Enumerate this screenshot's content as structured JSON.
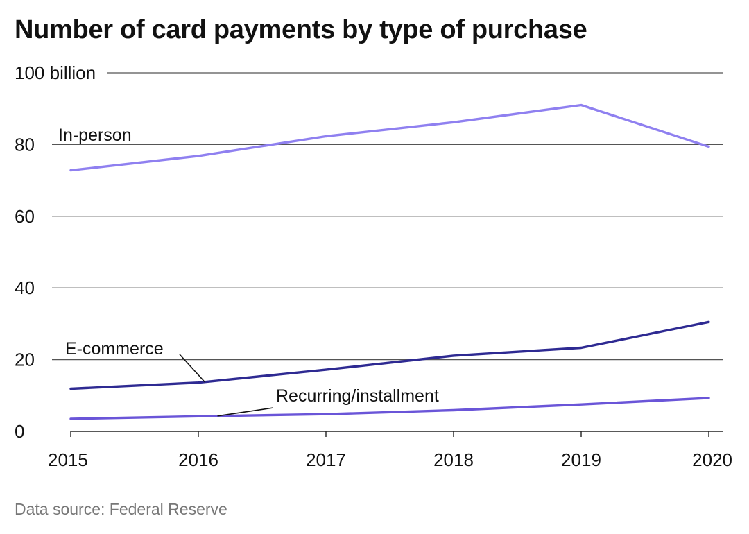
{
  "source_text": "Data source: Federal Reserve",
  "chart_data": {
    "type": "line",
    "title": "Number of card payments by type of purchase",
    "xlabel": "",
    "ylabel": "",
    "x": [
      "2015",
      "2016",
      "2017",
      "2018",
      "2019",
      "2020"
    ],
    "ylim": [
      0,
      100
    ],
    "yticks": [
      "0",
      "20",
      "40",
      "60",
      "80",
      "100 billion"
    ],
    "grid": true,
    "legend": "inline labels",
    "series": [
      {
        "name": "In-person",
        "color": "#8f80f0",
        "values": [
          72.8,
          76.8,
          82.3,
          86.2,
          91.0,
          79.4
        ]
      },
      {
        "name": "E-commerce",
        "color": "#2e2a92",
        "values": [
          11.9,
          13.6,
          17.2,
          21.1,
          23.3,
          30.5
        ]
      },
      {
        "name": "Recurring/installment",
        "color": "#6a55d8",
        "values": [
          3.5,
          4.2,
          4.8,
          5.9,
          7.5,
          9.3
        ]
      }
    ]
  }
}
